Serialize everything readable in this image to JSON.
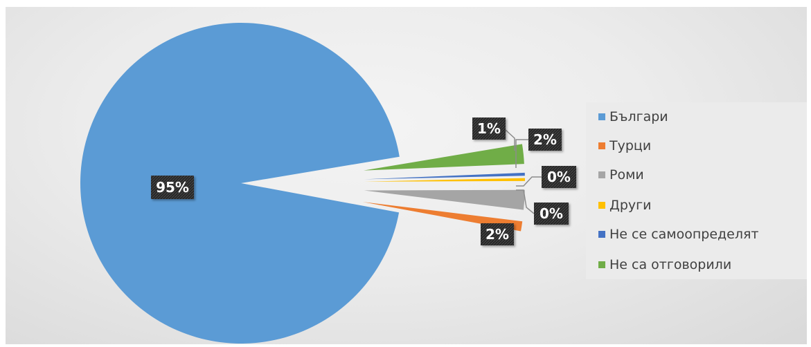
{
  "chart_data": {
    "type": "pie",
    "title": "",
    "categories": [
      "Българи",
      "Турци",
      "Роми",
      "Други",
      "Не се самоопределят",
      "Не са отговорили"
    ],
    "values": [
      95,
      1,
      2,
      0.3,
      0.3,
      2
    ],
    "data_labels": [
      "95%",
      "1%",
      "2%",
      "0%",
      "0%",
      "2%"
    ],
    "colors": [
      "#5b9bd5",
      "#ed7d31",
      "#a5a5a5",
      "#ffc000",
      "#4472c4",
      "#70ad47"
    ],
    "exploded": [
      false,
      true,
      true,
      true,
      true,
      true
    ],
    "legend_position": "right"
  }
}
